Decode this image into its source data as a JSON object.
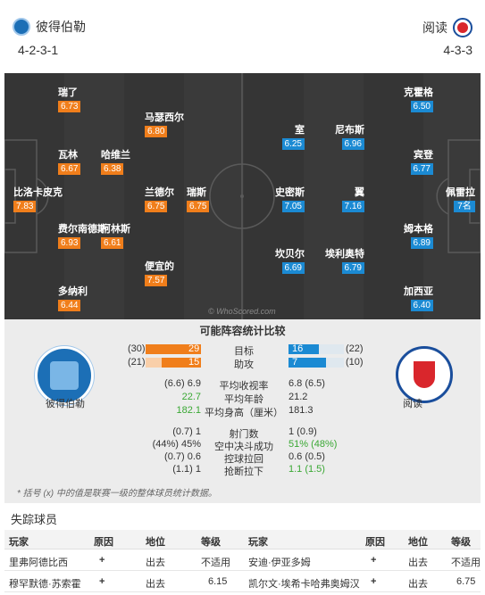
{
  "header": {
    "home_team": "彼得伯勒",
    "away_team": "阅读",
    "home_formation": "4-2-3-1",
    "away_formation": "4-3-3"
  },
  "pitch": {
    "watermark": "© WhoScored.com",
    "home_players": [
      {
        "name": "瑞了",
        "rating": "6.73"
      },
      {
        "name": "马瑟西尔",
        "rating": "6.80"
      },
      {
        "name": "瓦林",
        "rating": "6.67"
      },
      {
        "name": "哈维兰",
        "rating": "6.38"
      },
      {
        "name": "比洛卡皮克",
        "rating": "7.83"
      },
      {
        "name": "兰德尔",
        "rating": "6.75"
      },
      {
        "name": "瑞斯",
        "rating": "6.75"
      },
      {
        "name": "费尔南德斯",
        "rating": "6.93"
      },
      {
        "name": "柯林斯",
        "rating": "6.61"
      },
      {
        "name": "便宜的",
        "rating": "7.57"
      },
      {
        "name": "多纳利",
        "rating": "6.44"
      }
    ],
    "away_players": [
      {
        "name": "克霍格",
        "rating": "6.50"
      },
      {
        "name": "室",
        "rating": "6.25"
      },
      {
        "name": "尼布斯",
        "rating": "6.96"
      },
      {
        "name": "宾登",
        "rating": "6.77"
      },
      {
        "name": "史密斯",
        "rating": "7.05"
      },
      {
        "name": "翼",
        "rating": "7.16"
      },
      {
        "name": "佩雷拉",
        "rating": "7名"
      },
      {
        "name": "姆本格",
        "rating": "6.89"
      },
      {
        "name": "坎贝尔",
        "rating": "6.69"
      },
      {
        "name": "埃利奥特",
        "rating": "6.79"
      },
      {
        "name": "加西亚",
        "rating": "6.40"
      }
    ]
  },
  "comparison": {
    "title": "可能阵容统计比较",
    "home_label": "彼得伯勒",
    "away_label": "阅读",
    "goals": {
      "label": "目标",
      "home": "29",
      "home_total": "(30)",
      "away": "16",
      "away_total": "(22)"
    },
    "assists": {
      "label": "助攻",
      "home": "15",
      "home_total": "(21)",
      "away": "7",
      "away_total": "(10)"
    },
    "stats": [
      {
        "label": "平均收视率",
        "home": "(6.6) 6.9",
        "home_hi": "6.9",
        "away": "6.8 (6.5)"
      },
      {
        "label": "平均年龄",
        "home": "22.7",
        "away": "21.2"
      },
      {
        "label": "平均身高（厘米）",
        "home": "182.1",
        "away": "181.3"
      },
      {
        "label": "射门数",
        "home": "(0.7) 1",
        "away": "1 (0.9)"
      },
      {
        "label": "空中决斗成功",
        "home": "(44%) 45%",
        "away": "51% (48%)"
      },
      {
        "label": "控球拉回",
        "home": "(0.7) 0.6",
        "away": "0.6 (0.5)"
      },
      {
        "label": "抢断拉下",
        "home": "(1.1) 1",
        "away": "1.1 (1.5)"
      }
    ],
    "note": "* 括号 (x) 中的值是联赛一级的整体球员统计数据。",
    "colors": {
      "home": "#f07e1b",
      "away": "#1b8ad3",
      "highlight": "#3aa834"
    }
  },
  "missing": {
    "title": "失踪球员",
    "headers": [
      "玩家",
      "原因",
      "地位",
      "等级",
      "玩家",
      "原因",
      "地位",
      "等级"
    ],
    "rows": [
      {
        "home_player": "里弗阿德比西",
        "home_reason": "+",
        "home_status": "出去",
        "home_rating": "不适用",
        "away_player": "安迪·伊亚多姆",
        "away_reason": "+",
        "away_status": "出去",
        "away_rating": "不适用"
      },
      {
        "home_player": "穆罕默德·苏索霍",
        "home_reason": "+",
        "home_status": "出去",
        "home_rating": "6.15",
        "away_player": "凯尔文·埃希卡哈弗奥姆汉",
        "away_reason": "+",
        "away_status": "出去",
        "away_rating": "6.75"
      }
    ]
  }
}
